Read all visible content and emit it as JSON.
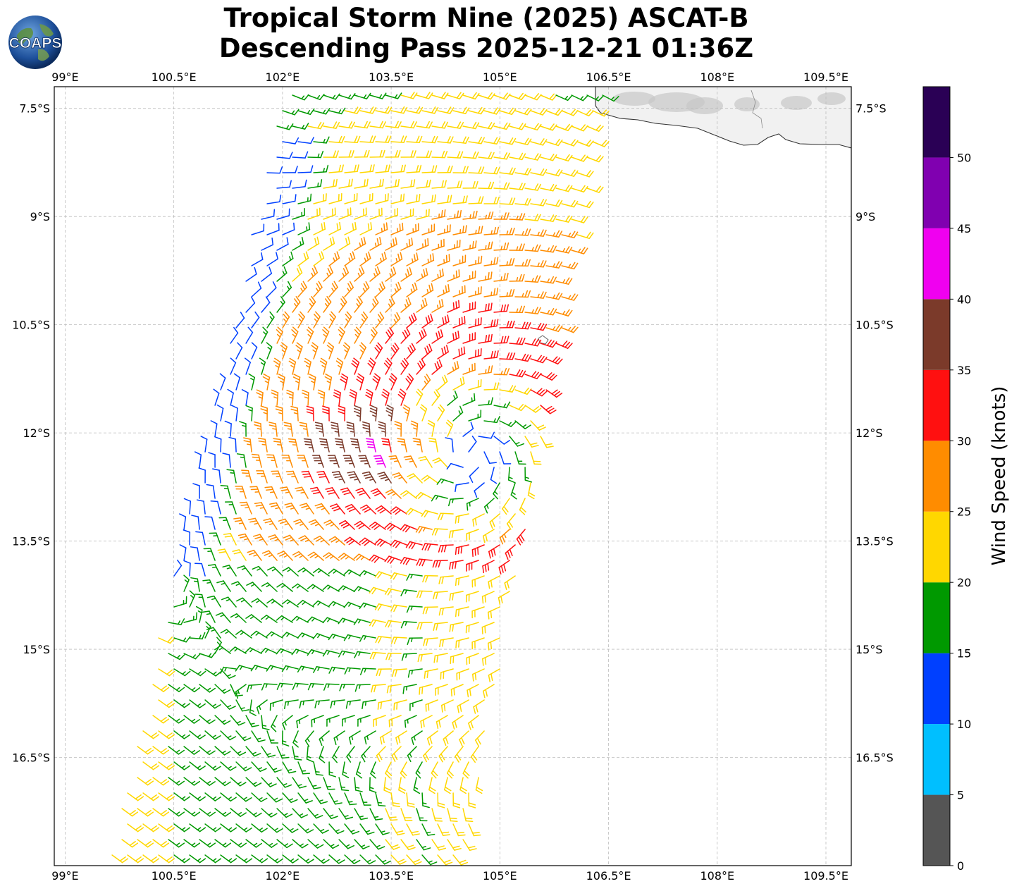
{
  "title": {
    "line1": "Tropical Storm Nine (2025) ASCAT-B",
    "line2": "Descending Pass 2025-12-21 01:36Z"
  },
  "logo": {
    "text": "COAPS",
    "icon": "globe-icon"
  },
  "map": {
    "lon_range": [
      98.85,
      109.85
    ],
    "lat_range": [
      -18.0,
      -7.2
    ],
    "lon_ticks": [
      {
        "v": 99.0,
        "label": "99°E"
      },
      {
        "v": 100.5,
        "label": "100.5°E"
      },
      {
        "v": 102.0,
        "label": "102°E"
      },
      {
        "v": 103.5,
        "label": "103.5°E"
      },
      {
        "v": 105.0,
        "label": "105°E"
      },
      {
        "v": 106.5,
        "label": "106.5°E"
      },
      {
        "v": 108.0,
        "label": "108°E"
      },
      {
        "v": 109.5,
        "label": "109.5°E"
      }
    ],
    "lat_ticks": [
      {
        "v": -7.5,
        "label": "7.5°S"
      },
      {
        "v": -9.0,
        "label": "9°S"
      },
      {
        "v": -10.5,
        "label": "10.5°S"
      },
      {
        "v": -12.0,
        "label": "12°S"
      },
      {
        "v": -13.5,
        "label": "13.5°S"
      },
      {
        "v": -15.0,
        "label": "15°S"
      },
      {
        "v": -16.5,
        "label": "16.5°S"
      }
    ],
    "storm_center": {
      "lon": 104.6,
      "lat": -12.3
    },
    "grid": "dashed"
  },
  "colorbar": {
    "label": "Wind Speed (knots)",
    "ticks": [
      "0",
      "5",
      "10",
      "15",
      "20",
      "25",
      "30",
      "35",
      "40",
      "45",
      "50"
    ],
    "bins": [
      {
        "from": 0,
        "to": 5,
        "color": "#555555"
      },
      {
        "from": 5,
        "to": 10,
        "color": "#00bfff"
      },
      {
        "from": 10,
        "to": 15,
        "color": "#0040ff"
      },
      {
        "from": 15,
        "to": 20,
        "color": "#009900"
      },
      {
        "from": 20,
        "to": 25,
        "color": "#ffd700"
      },
      {
        "from": 25,
        "to": 30,
        "color": "#ff8c00"
      },
      {
        "from": 30,
        "to": 35,
        "color": "#ff1010"
      },
      {
        "from": 35,
        "to": 40,
        "color": "#7b3a2a"
      },
      {
        "from": 40,
        "to": 45,
        "color": "#f000f0"
      },
      {
        "from": 45,
        "to": 50,
        "color": "#8000b0"
      },
      {
        "from": 50,
        "to": 55,
        "color": "#2a0055"
      }
    ]
  }
}
